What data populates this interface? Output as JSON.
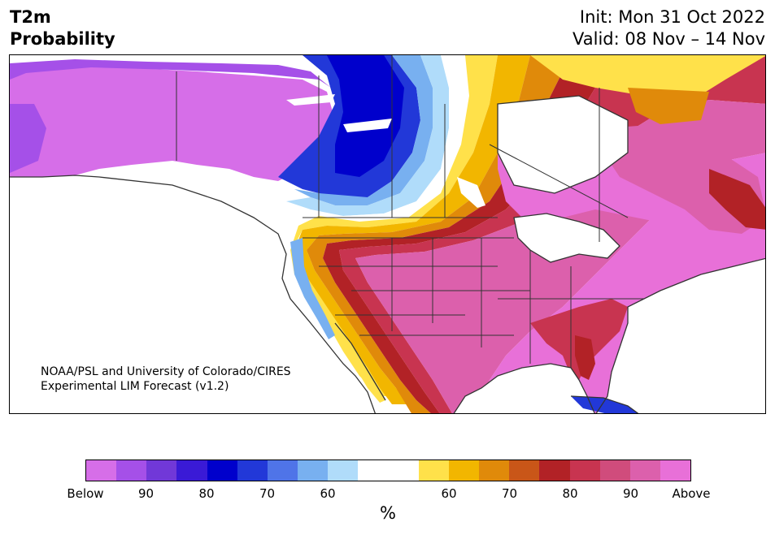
{
  "header": {
    "title_line1": "T2m",
    "title_line2": "Probability",
    "init": "Init: Mon 31 Oct 2022",
    "valid": "Valid: 08 Nov – 14 Nov"
  },
  "credit": {
    "line1": "NOAA/PSL and University of Colorado/CIRES",
    "line2": "Experimental LIM Forecast (v1.2)"
  },
  "colorbar": {
    "unit": "%",
    "colors": [
      "#d66ee8",
      "#a550e8",
      "#7138d8",
      "#3a1ad6",
      "#0000cc",
      "#2238d8",
      "#4f74e8",
      "#78b0f0",
      "#b0dcfa",
      "#ffffff",
      "#ffffff",
      "#ffe14a",
      "#f2b600",
      "#e08a0a",
      "#c95618",
      "#b22226",
      "#c83450",
      "#d04c7c",
      "#dc60ac",
      "#e870d8"
    ],
    "tick_labels": [
      "Below",
      "90",
      "80",
      "70",
      "60",
      "60",
      "70",
      "80",
      "90",
      "Above"
    ]
  },
  "map_colors": {
    "purple": "#d66ee8",
    "violet": "#a550e8",
    "deep_blue": "#0000cc",
    "blue": "#2238d8",
    "light_blue": "#78b0f0",
    "pale_blue": "#b0dcfa",
    "yellow": "#ffe14a",
    "orange": "#f2b600",
    "dark_orange": "#e08a0a",
    "red": "#b22226",
    "rose": "#c83450",
    "pink": "#dc60ac",
    "magenta": "#e870d8",
    "border": "#333333"
  }
}
